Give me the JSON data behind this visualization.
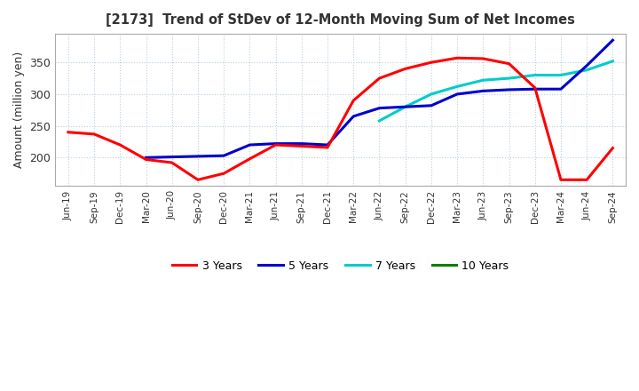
{
  "title": "[2173]  Trend of StDev of 12-Month Moving Sum of Net Incomes",
  "ylabel": "Amount (million yen)",
  "ylim": [
    155,
    395
  ],
  "yticks": [
    200,
    250,
    300,
    350
  ],
  "background_color": "#ffffff",
  "grid_color": "#b8cfe0",
  "legend_labels": [
    "3 Years",
    "5 Years",
    "7 Years",
    "10 Years"
  ],
  "legend_colors": [
    "#ff0000",
    "#0000cd",
    "#00cccc",
    "#008000"
  ],
  "x_labels": [
    "Jun-19",
    "Sep-19",
    "Dec-19",
    "Mar-20",
    "Jun-20",
    "Sep-20",
    "Dec-20",
    "Mar-21",
    "Jun-21",
    "Sep-21",
    "Dec-21",
    "Mar-22",
    "Jun-22",
    "Sep-22",
    "Dec-22",
    "Mar-23",
    "Jun-23",
    "Sep-23",
    "Dec-23",
    "Mar-24",
    "Jun-24",
    "Sep-24"
  ],
  "series_3y": [
    240,
    237,
    220,
    197,
    192,
    165,
    175,
    198,
    220,
    218,
    216,
    290,
    325,
    340,
    350,
    357,
    356,
    348,
    310,
    165,
    165,
    215
  ],
  "series_5y": [
    null,
    null,
    null,
    200,
    201,
    202,
    203,
    220,
    222,
    222,
    220,
    265,
    278,
    280,
    282,
    300,
    305,
    307,
    308,
    308,
    345,
    385
  ],
  "series_7y": [
    null,
    null,
    null,
    null,
    null,
    null,
    null,
    null,
    null,
    null,
    null,
    null,
    258,
    280,
    300,
    312,
    322,
    325,
    330,
    330,
    338,
    352
  ],
  "series_10y": []
}
